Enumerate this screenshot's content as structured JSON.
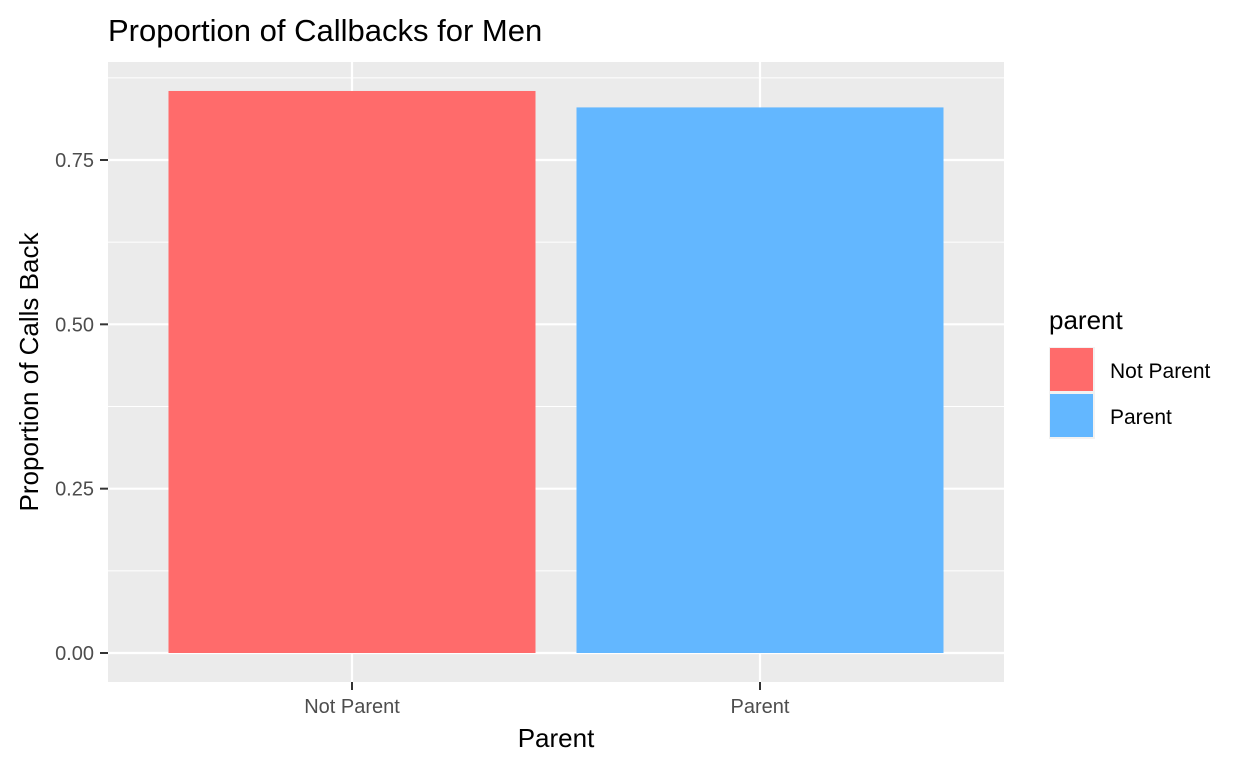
{
  "chart_data": {
    "type": "bar",
    "title": "Proportion of Callbacks for Men",
    "xlabel": "Parent",
    "ylabel": "Proportion of Calls Back",
    "categories": [
      "Not Parent",
      "Parent"
    ],
    "values": [
      0.855,
      0.83
    ],
    "colors": [
      "#FF6B6B",
      "#63B7FF"
    ],
    "ylim": [
      0,
      0.875
    ],
    "yticks": [
      0.0,
      0.25,
      0.5,
      0.75
    ],
    "ytick_labels": [
      "0.00",
      "0.25",
      "0.50",
      "0.75"
    ],
    "grid": true,
    "legend": {
      "title": "parent",
      "position": "right",
      "entries": [
        {
          "label": "Not Parent",
          "color": "#FF6B6B"
        },
        {
          "label": "Parent",
          "color": "#63B7FF"
        }
      ]
    }
  }
}
